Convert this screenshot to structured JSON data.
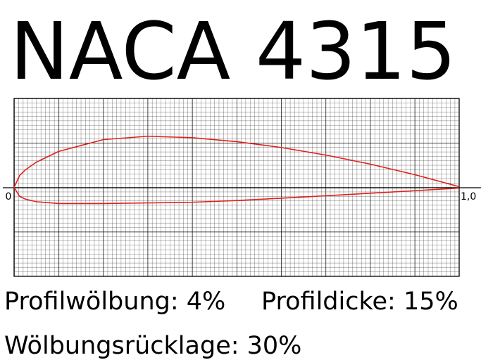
{
  "chart_data": {
    "type": "line",
    "title": "NACA 4315",
    "x": [
      0,
      0.0125,
      0.025,
      0.05,
      0.1,
      0.2,
      0.3,
      0.4,
      0.5,
      0.6,
      0.7,
      0.8,
      0.9,
      1
    ],
    "series": [
      {
        "color": "#e0201b",
        "values": [
          0,
          0.0269,
          0.0391,
          0.0567,
          0.0808,
          0.1073,
          0.115,
          0.1117,
          0.1029,
          0.0897,
          0.0727,
          0.0524,
          0.0287,
          0.0016
        ]
      },
      {
        "color": "#e0201b",
        "values": [
          0,
          -0.0204,
          -0.0263,
          -0.0322,
          -0.0363,
          -0.0362,
          -0.035,
          -0.0334,
          -0.0295,
          -0.0244,
          -0.0189,
          -0.0132,
          -0.0075,
          -0.0016
        ]
      }
    ],
    "xlim": [
      0,
      1
    ],
    "ylim": [
      -0.2,
      0.2
    ],
    "xticks": [
      0,
      {
        "value": 1,
        "label": "1,0"
      }
    ],
    "annotations": [
      "Profilwölbung: 4%",
      "Profildicke: 15%",
      "Wölbungsrücklage: 30%"
    ]
  }
}
